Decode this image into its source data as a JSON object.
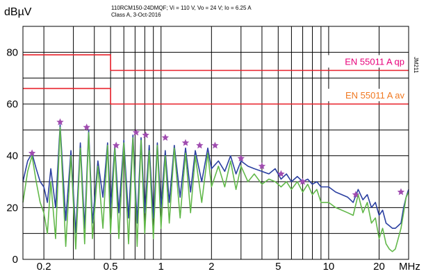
{
  "chart_data": {
    "type": "line",
    "header": {
      "line1": "110RCM150-24DMQF;  Vi = 110 V, Vo = 24 V; Io = 6.25 A",
      "line2": "Class A, 3-Oct-2016"
    },
    "ylabel": "dBµV",
    "xunit": "MHz",
    "side_label": "JM211",
    "xscale": "log",
    "xlim": [
      0.15,
      30
    ],
    "ylim": [
      0,
      90
    ],
    "yticks": [
      0,
      20,
      40,
      60,
      80
    ],
    "xticks": [
      {
        "value": 0.2,
        "label": "0.2"
      },
      {
        "value": 0.5,
        "label": "0.5"
      },
      {
        "value": 1,
        "label": "1"
      },
      {
        "value": 2,
        "label": "2"
      },
      {
        "value": 5,
        "label": "5"
      },
      {
        "value": 10,
        "label": "10"
      },
      {
        "value": 20,
        "label": "20"
      }
    ],
    "grid": true,
    "limits": [
      {
        "name": "EN 55011 A qp",
        "color": "#e8007a",
        "points": [
          [
            0.15,
            79
          ],
          [
            0.5,
            79
          ],
          [
            0.5,
            73
          ],
          [
            30,
            73
          ]
        ]
      },
      {
        "name": "EN 55011 A av",
        "color": "#f07820",
        "points": [
          [
            0.15,
            66
          ],
          [
            0.5,
            66
          ],
          [
            0.5,
            60
          ],
          [
            30,
            60
          ]
        ]
      }
    ],
    "limit_line_color": "#e8202a",
    "series": [
      {
        "color": "#2a3fa0",
        "x": [
          0.15,
          0.16,
          0.17,
          0.18,
          0.19,
          0.2,
          0.21,
          0.22,
          0.235,
          0.25,
          0.27,
          0.29,
          0.31,
          0.33,
          0.35,
          0.37,
          0.39,
          0.42,
          0.45,
          0.48,
          0.5,
          0.53,
          0.56,
          0.6,
          0.64,
          0.68,
          0.72,
          0.76,
          0.8,
          0.85,
          0.9,
          0.95,
          1.0,
          1.06,
          1.12,
          1.2,
          1.3,
          1.4,
          1.5,
          1.6,
          1.75,
          1.9,
          2.0,
          2.2,
          2.4,
          2.6,
          2.8,
          3.0,
          3.3,
          3.6,
          4.0,
          4.4,
          4.8,
          5.2,
          5.6,
          6.0,
          6.5,
          7.0,
          7.5,
          8.0,
          8.5,
          9.0,
          10.0,
          11.0,
          12.0,
          13.0,
          14.0,
          15.0,
          16.0,
          17.0,
          18.0,
          19.0,
          20.0,
          21.0,
          22.0,
          23.0,
          24.0,
          25.0,
          26.0,
          27.0,
          28.0,
          29.0,
          30.0
        ],
        "y": [
          30,
          38,
          41,
          35,
          30,
          28,
          22,
          35,
          20,
          52,
          15,
          42,
          10,
          45,
          12,
          50,
          14,
          38,
          24,
          45,
          20,
          44,
          18,
          46,
          16,
          48,
          14,
          47,
          18,
          44,
          16,
          45,
          20,
          42,
          22,
          44,
          24,
          43,
          26,
          42,
          30,
          43,
          35,
          38,
          34,
          40,
          33,
          38,
          36,
          35,
          34,
          33,
          35,
          31,
          33,
          30,
          32,
          30,
          31,
          29,
          30,
          28,
          28,
          26,
          25,
          24,
          22,
          27,
          23,
          25,
          20,
          22,
          17,
          19,
          14,
          13,
          12,
          12,
          13,
          14,
          20,
          24,
          27
        ]
      },
      {
        "color": "#62b84a",
        "x": [
          0.15,
          0.16,
          0.17,
          0.18,
          0.19,
          0.2,
          0.21,
          0.22,
          0.235,
          0.25,
          0.27,
          0.29,
          0.31,
          0.33,
          0.35,
          0.37,
          0.39,
          0.42,
          0.45,
          0.48,
          0.5,
          0.53,
          0.56,
          0.6,
          0.64,
          0.68,
          0.72,
          0.76,
          0.8,
          0.85,
          0.9,
          0.95,
          1.0,
          1.06,
          1.12,
          1.2,
          1.3,
          1.4,
          1.5,
          1.6,
          1.75,
          1.9,
          2.0,
          2.2,
          2.4,
          2.6,
          2.8,
          3.0,
          3.3,
          3.6,
          4.0,
          4.4,
          4.8,
          5.2,
          5.6,
          6.0,
          6.5,
          7.0,
          7.5,
          8.0,
          8.5,
          9.0,
          10.0,
          11.0,
          12.0,
          13.0,
          14.0,
          15.0,
          16.0,
          17.0,
          18.0,
          19.0,
          20.0,
          21.0,
          22.0,
          23.0,
          24.0,
          25.0,
          26.0,
          27.0,
          28.0,
          29.0,
          30.0
        ],
        "y": [
          22,
          34,
          40,
          30,
          22,
          18,
          10,
          30,
          8,
          51,
          5,
          40,
          4,
          43,
          6,
          49,
          8,
          36,
          12,
          44,
          10,
          43,
          8,
          45,
          6,
          47,
          5,
          46,
          10,
          42,
          8,
          44,
          12,
          40,
          14,
          43,
          16,
          41,
          18,
          40,
          22,
          41,
          28,
          36,
          28,
          38,
          27,
          36,
          30,
          33,
          29,
          31,
          30,
          28,
          30,
          27,
          30,
          26,
          29,
          25,
          27,
          22,
          22,
          20,
          19,
          18,
          17,
          25,
          18,
          22,
          14,
          16,
          8,
          12,
          6,
          4,
          3,
          4,
          8,
          12,
          18,
          24,
          26
        ]
      }
    ],
    "markers": {
      "color": "#a04cb0",
      "points": [
        [
          0.17,
          41
        ],
        [
          0.25,
          53
        ],
        [
          0.36,
          51
        ],
        [
          0.54,
          44
        ],
        [
          0.71,
          49
        ],
        [
          0.81,
          48
        ],
        [
          1.06,
          47
        ],
        [
          1.4,
          45
        ],
        [
          1.7,
          44
        ],
        [
          2.1,
          44
        ],
        [
          3.0,
          39
        ],
        [
          4.0,
          36
        ],
        [
          5.2,
          33
        ],
        [
          7.0,
          30
        ],
        [
          14.5,
          25
        ],
        [
          27.0,
          26
        ]
      ]
    }
  }
}
